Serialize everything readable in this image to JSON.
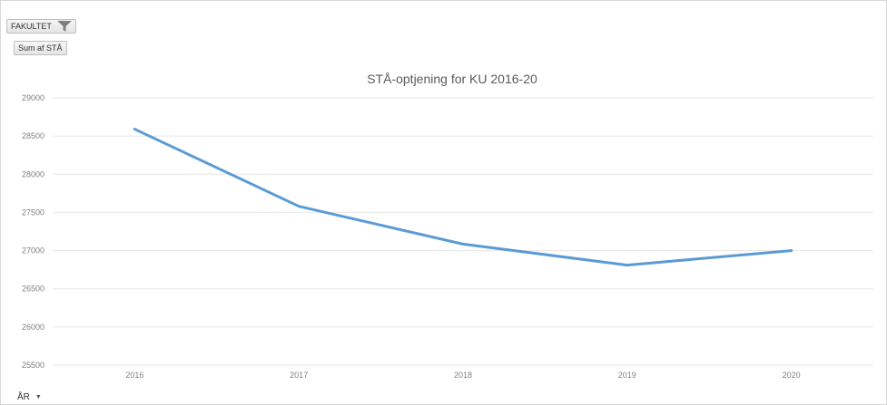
{
  "pivot": {
    "filter_field": "FAKULTET",
    "value_field": "Sum af STÅ",
    "axis_field": "ÅR"
  },
  "chart_data": {
    "type": "line",
    "title": "STÅ-optjening for KU 2016-20",
    "categories": [
      "2016",
      "2017",
      "2018",
      "2019",
      "2020"
    ],
    "series": [
      {
        "values": [
          28590,
          27580,
          27085,
          26810,
          27000
        ],
        "color": "#5b9bd5"
      }
    ],
    "ylim": [
      25500,
      29000
    ],
    "yticks": [
      25500,
      26000,
      26500,
      27000,
      27500,
      28000,
      28500,
      29000
    ],
    "grid": true,
    "legend": "none"
  }
}
